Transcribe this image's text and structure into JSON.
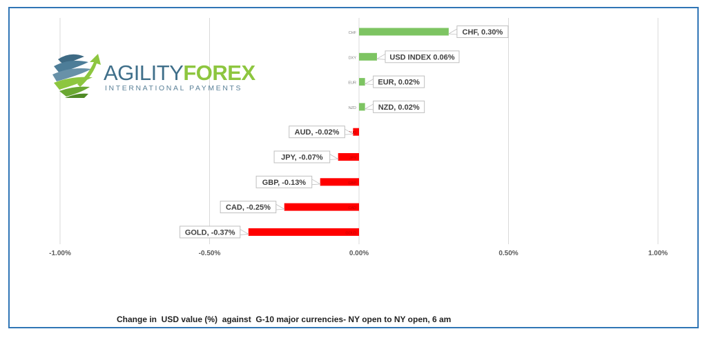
{
  "logo": {
    "word_primary": "AGILITY",
    "word_secondary": "FOREX",
    "tagline": "INTERNATIONAL PAYMENTS"
  },
  "caption": "Change in  USD value (%)  against  G-10 major currencies- NY open to NY open, 6 am",
  "colors": {
    "positive": "#7dc462",
    "negative": "#ff0000",
    "gridline": "#d9d9d9",
    "frame_border": "#2f75b5",
    "label_border": "#bfbfbf"
  },
  "chart_data": {
    "type": "bar",
    "orientation": "horizontal",
    "categories": [
      "CHF",
      "DXY",
      "EUR",
      "NZD",
      "AUD",
      "JPY",
      "GBP",
      "CAD",
      "GOLD"
    ],
    "values": [
      0.3,
      0.06,
      0.02,
      0.02,
      -0.02,
      -0.07,
      -0.13,
      -0.25,
      -0.37
    ],
    "unit": "%",
    "data_labels": [
      "CHF, 0.30%",
      "USD INDEX 0.06%",
      "EUR, 0.02%",
      "NZD, 0.02%",
      "AUD, -0.02%",
      "JPY, -0.07%",
      "GBP, -0.13%",
      "CAD, -0.25%",
      "GOLD, -0.37%"
    ],
    "x_ticks": [
      -1.0,
      -0.5,
      0.0,
      0.5,
      1.0
    ],
    "x_tick_labels": [
      "-1.00%",
      "-0.50%",
      "0.00%",
      "0.50%",
      "1.00%"
    ],
    "xlim": [
      -1.0,
      1.0
    ],
    "grid": true,
    "legend": "none"
  }
}
